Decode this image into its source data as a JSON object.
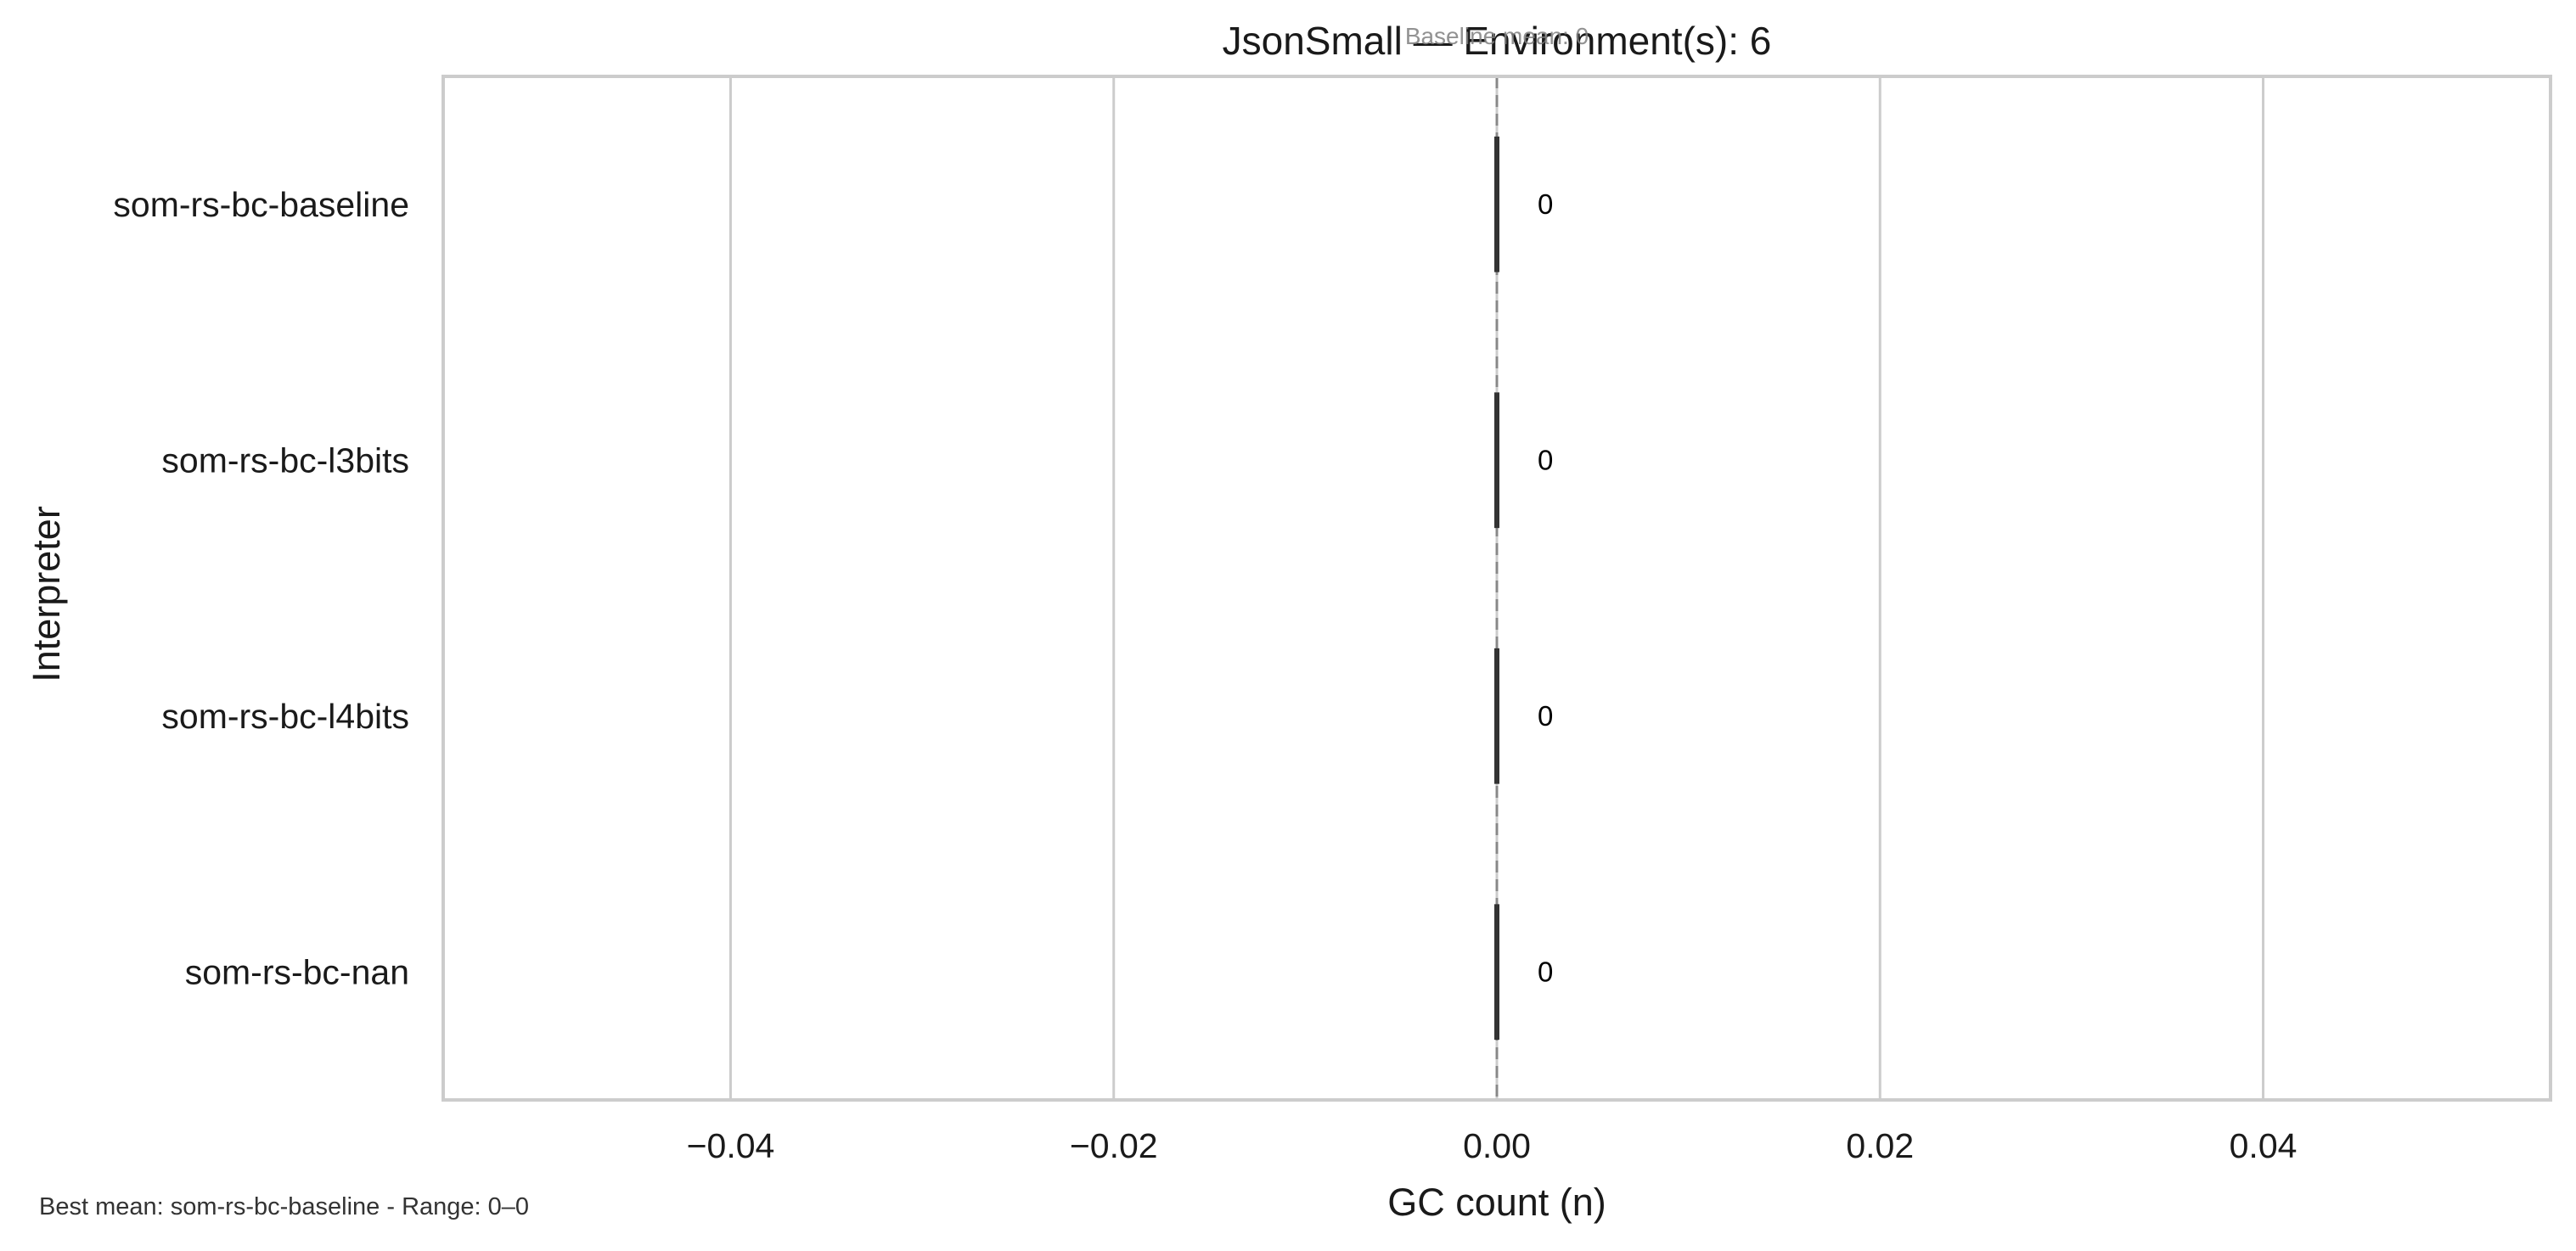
{
  "chart_data": {
    "type": "bar",
    "orientation": "horizontal",
    "title": "JsonSmall — Environment(s): 6",
    "subtitle": "Baseline mean: 0",
    "xlabel": "GC count (n)",
    "ylabel": "Interpreter",
    "categories": [
      "som-rs-bc-baseline",
      "som-rs-bc-l3bits",
      "som-rs-bc-l4bits",
      "som-rs-bc-nan"
    ],
    "values": [
      0,
      0,
      0,
      0
    ],
    "value_labels": [
      "0",
      "0",
      "0",
      "0"
    ],
    "xlim": [
      -0.055,
      0.055
    ],
    "xticks": [
      -0.04,
      -0.02,
      0.0,
      0.02,
      0.04
    ],
    "xtick_labels": [
      "−0.04",
      "−0.02",
      "0.00",
      "0.02",
      "0.04"
    ],
    "baseline_value": 0,
    "grid": "vertical",
    "footnote": "Best mean: som-rs-bc-baseline - Range: 0–0",
    "colors": {
      "grid": "#cccccc",
      "spine": "#cccccc",
      "bar_edge": "#333333",
      "baseline_line": "#888888"
    }
  }
}
